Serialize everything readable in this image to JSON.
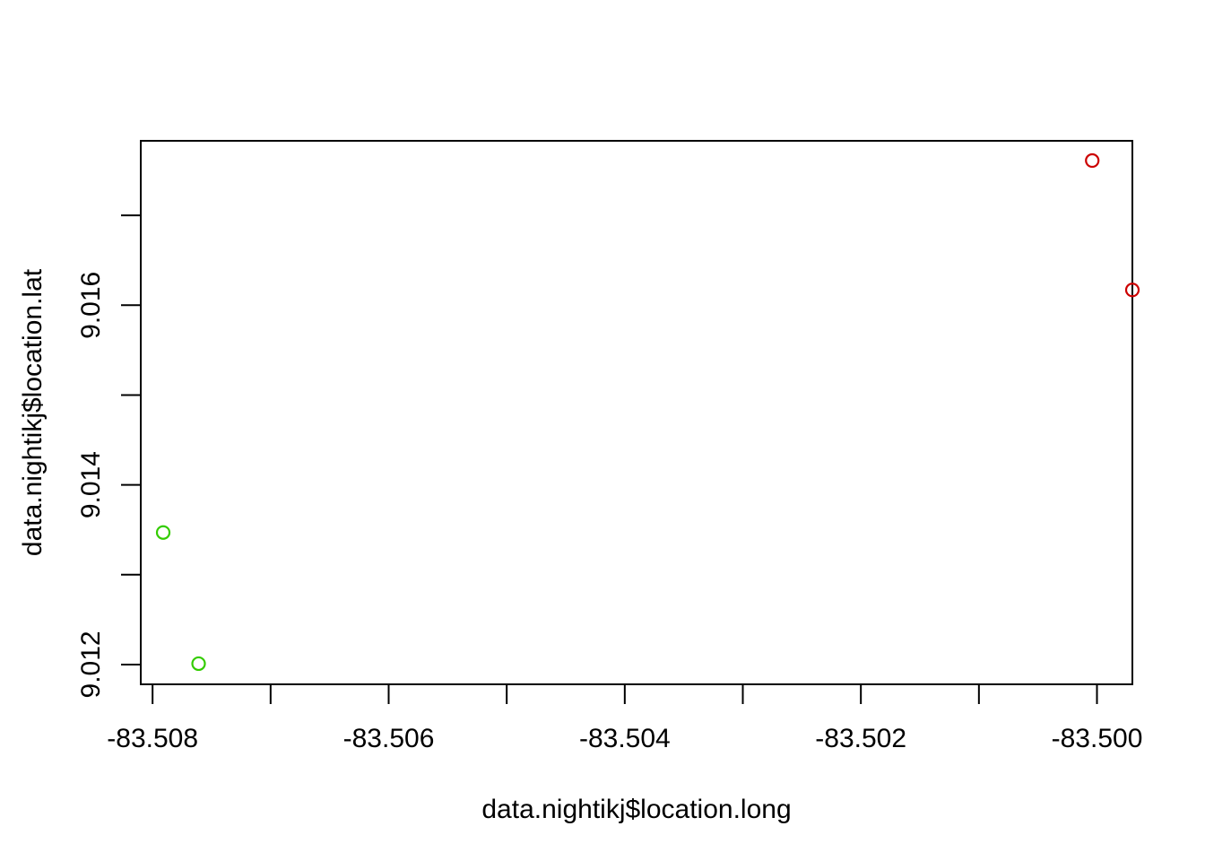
{
  "chart_data": {
    "type": "scatter",
    "title": "",
    "xlabel": "data.nightikj$location.long",
    "ylabel": "data.nightikj$location.lat",
    "xlim": [
      -83.5081,
      -83.4997
    ],
    "ylim": [
      9.01178,
      9.01783
    ],
    "x_ticks": [
      -83.508,
      -83.507,
      -83.506,
      -83.505,
      -83.504,
      -83.503,
      -83.502,
      -83.501,
      -83.5
    ],
    "x_tick_labels": [
      "-83.508",
      "",
      "-83.506",
      "",
      "-83.504",
      "",
      "-83.502",
      "",
      "-83.500"
    ],
    "y_ticks": [
      9.012,
      9.013,
      9.014,
      9.015,
      9.016,
      9.017
    ],
    "y_tick_labels": [
      "9.012",
      "",
      "9.014",
      "",
      "9.016",
      ""
    ],
    "grid": false,
    "legend": "none",
    "points": [
      {
        "x": -83.50004,
        "y": 9.01761,
        "color": "#cc0000"
      },
      {
        "x": -83.4997,
        "y": 9.01617,
        "color": "#cc0000"
      },
      {
        "x": -83.50791,
        "y": 9.01347,
        "color": "#33cc00"
      },
      {
        "x": -83.50761,
        "y": 9.01201,
        "color": "#33cc00"
      }
    ]
  }
}
